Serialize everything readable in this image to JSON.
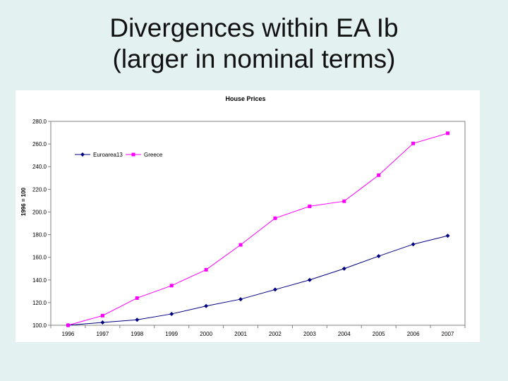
{
  "slide": {
    "title_line1": "Divergences within EA Ib",
    "title_line2": "(larger in nominal terms)"
  },
  "colors": {
    "background": "#e3f1f1",
    "euroarea": "#000080",
    "greece": "#ff00ff"
  },
  "chart_data": {
    "type": "line",
    "title": "House Prices",
    "xlabel": "",
    "ylabel": "1996 = 100",
    "ylim": [
      100,
      280
    ],
    "yticks": [
      100,
      120,
      140,
      160,
      180,
      200,
      220,
      240,
      260,
      280
    ],
    "ytick_labels": [
      "100.0",
      "120.0",
      "140.0",
      "160.0",
      "180.0",
      "200.0",
      "220.0",
      "240.0",
      "260.0",
      "280.0"
    ],
    "categories": [
      "1996",
      "1997",
      "1998",
      "1999",
      "2000",
      "2001",
      "2002",
      "2003",
      "2004",
      "2005",
      "2006",
      "2007"
    ],
    "grid": false,
    "legend_position": "top-left",
    "series": [
      {
        "name": "Euroarea13",
        "color": "#000080",
        "marker": "diamond",
        "values": [
          100.0,
          102.5,
          104.8,
          110.0,
          117.0,
          123.0,
          131.5,
          140.0,
          150.0,
          161.0,
          171.5,
          179.0
        ]
      },
      {
        "name": "Greece",
        "color": "#ff00ff",
        "marker": "square",
        "values": [
          100.0,
          108.5,
          124.0,
          135.0,
          149.0,
          171.0,
          194.5,
          205.0,
          209.5,
          232.5,
          260.5,
          269.5
        ]
      }
    ]
  }
}
